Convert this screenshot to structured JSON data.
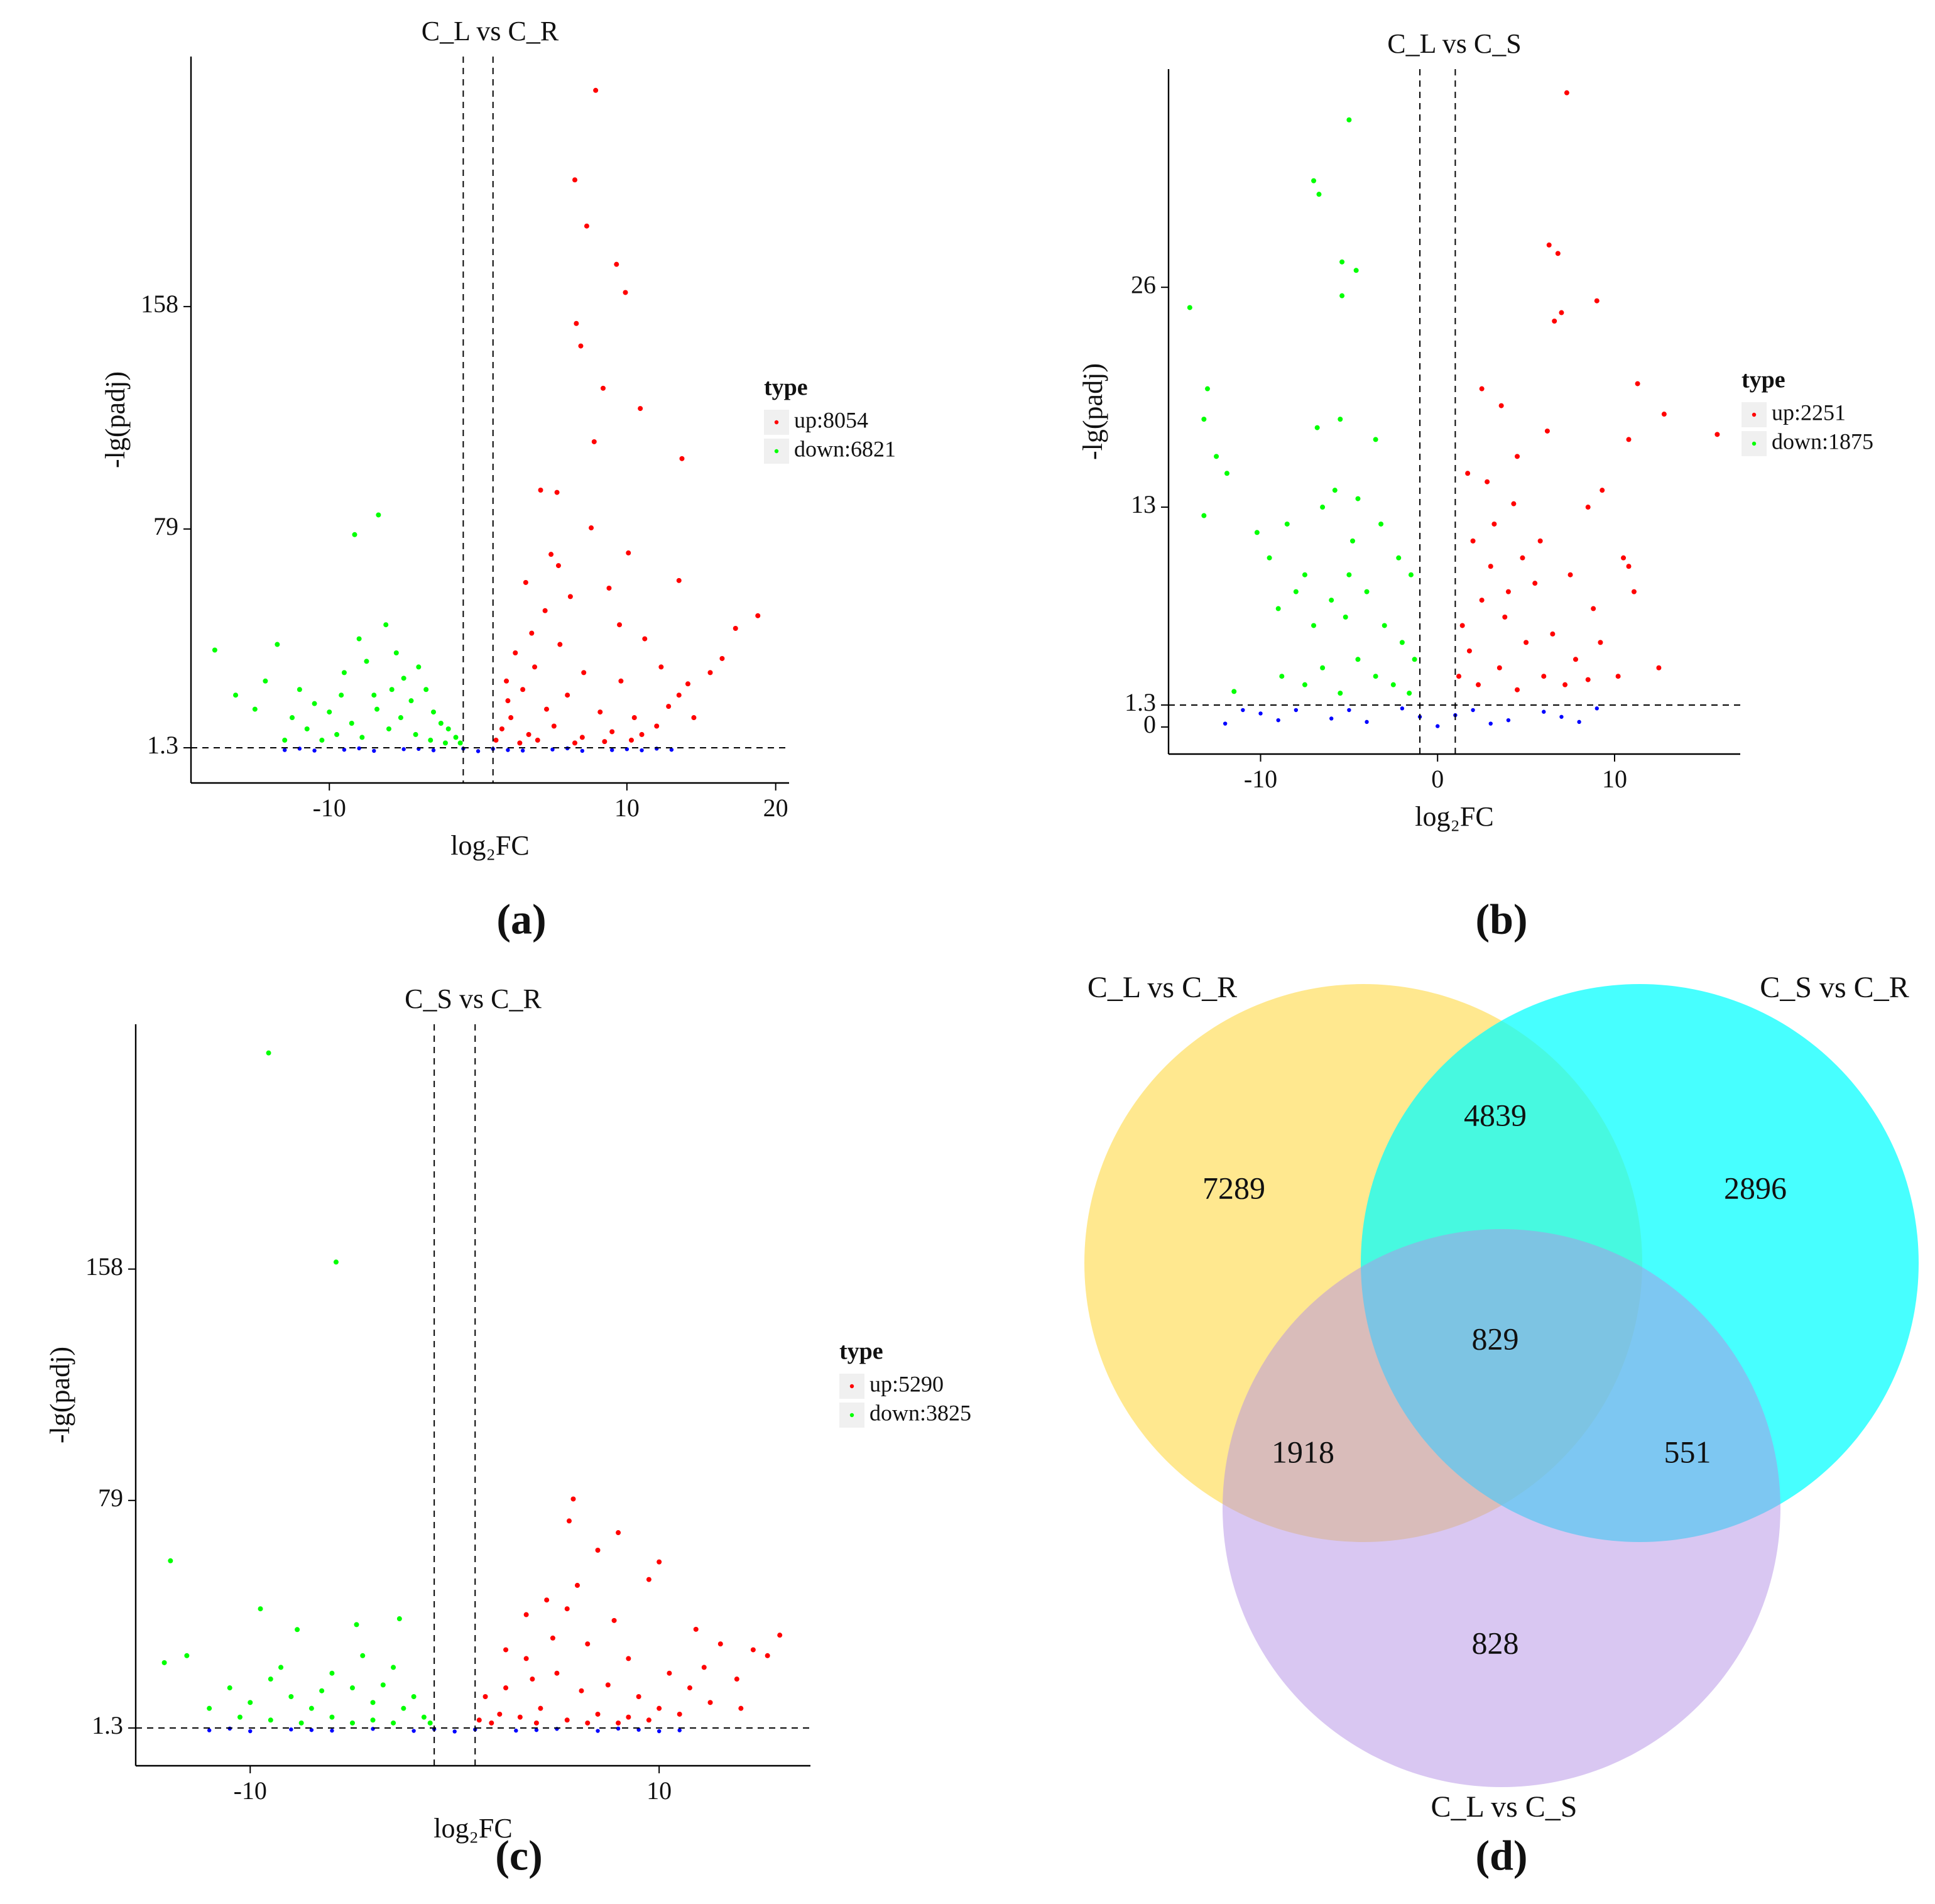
{
  "chart_data": [
    {
      "type": "scatter",
      "panel_label": "(a)",
      "title": "C_L vs C_R",
      "xlabel": "log₂FC",
      "ylabel": "-lg(padj)",
      "legend_title": "type",
      "xlim": [
        -19.3,
        20.9
      ],
      "ylim": [
        -11.2,
        246.8
      ],
      "xticks": [
        -10,
        10,
        20
      ],
      "yticks": [
        1.3,
        79,
        158
      ],
      "thresholds": {
        "x": [
          -1,
          1
        ],
        "y": 1.3
      },
      "series": [
        {
          "color": "#0000ff",
          "x": [
            -13,
            -11,
            -9,
            -7,
            -5,
            -3,
            -1,
            0,
            1,
            3,
            5,
            7,
            9,
            11,
            13,
            -12,
            -8,
            -4,
            2,
            6,
            10,
            12
          ],
          "values": [
            0.5,
            0.3,
            0.6,
            0.2,
            0.8,
            0.4,
            1.0,
            0.1,
            0.9,
            0.3,
            0.7,
            0.2,
            0.5,
            0.4,
            0.6,
            1.0,
            1.1,
            0.9,
            0.5,
            1.1,
            0.8,
            1.0
          ]
        },
        {
          "name": "up:8054",
          "color": "#ff0000",
          "x": [
            7.9,
            6.5,
            7.3,
            9.3,
            9.9,
            6.9,
            6.6,
            8.4,
            10.9,
            13.7,
            7.8,
            5.3,
            4.2,
            7.6,
            5.4,
            10.1,
            13.5,
            18.8,
            17.3,
            3.2,
            4.5,
            6.2,
            8.8,
            9.5,
            11.2,
            2.5,
            3.8,
            5.5,
            7.1,
            9.6,
            12.3,
            14.1,
            15.6,
            16.4,
            2.0,
            3.0,
            4.6,
            6.0,
            8.2,
            10.5,
            12.8,
            13.5,
            1.6,
            2.2,
            3.4,
            5.1,
            7.0,
            9.0,
            11.0,
            1.2,
            2.8,
            4.0,
            6.5,
            8.5,
            10.3,
            12.0,
            14.5,
            1.9,
            3.6,
            4.9
          ],
          "values": [
            234.8,
            203,
            186.6,
            173,
            163,
            144,
            152,
            129,
            121.8,
            104,
            110,
            92,
            92.8,
            79.4,
            66,
            70.5,
            60.7,
            48.2,
            43.7,
            60,
            50,
            55,
            58,
            45,
            40,
            35,
            30,
            38,
            28,
            25,
            30,
            24,
            28,
            33,
            18,
            22,
            15,
            20,
            14,
            12,
            16,
            20,
            8,
            12,
            6,
            9,
            5,
            7,
            6,
            4,
            3,
            4,
            3,
            3.5,
            4,
            9,
            12,
            25,
            42,
            70
          ]
        },
        {
          "name": "down:6821",
          "color": "#00ff00",
          "x": [
            -8.3,
            -6.7,
            -17.7,
            -14.3,
            -13.5,
            -12,
            -11,
            -10,
            -9,
            -8,
            -7.5,
            -7,
            -6.2,
            -5.5,
            -5,
            -4.5,
            -4,
            -3.5,
            -3,
            -2.5,
            -2,
            -1.5,
            -1.2,
            -9.5,
            -11.5,
            -13,
            -15,
            -16.3,
            -12.5,
            -10.5,
            -8.5,
            -7.8,
            -6,
            -5.2,
            -4.2,
            -3.2,
            -2.2,
            -6.8,
            -9.2,
            -5.8
          ],
          "values": [
            77,
            84,
            36,
            25,
            38,
            22,
            17,
            14,
            28,
            40,
            32,
            20,
            45,
            35,
            26,
            18,
            30,
            22,
            14,
            10,
            8,
            5,
            3,
            6,
            8,
            4,
            15,
            20,
            12,
            4,
            10,
            5,
            8,
            12,
            6,
            4,
            3,
            15,
            20,
            22
          ]
        }
      ]
    },
    {
      "type": "scatter",
      "panel_label": "(b)",
      "title": "C_L vs C_S",
      "xlabel": "log₂FC",
      "ylabel": "-lg(padj)",
      "legend_title": "type",
      "xlim": [
        -15.2,
        17.1
      ],
      "ylim": [
        -1.6,
        38.9
      ],
      "xticks": [
        -10,
        0,
        10
      ],
      "yticks": [
        0,
        1.3,
        13,
        26
      ],
      "thresholds": {
        "x": [
          -1,
          1
        ],
        "y": 1.3
      },
      "series": [
        {
          "color": "#0000ff",
          "x": [
            -12,
            -10,
            -8,
            -6,
            -4,
            -2,
            -1,
            0,
            1,
            2,
            4,
            6,
            8,
            9,
            -9,
            -5,
            3,
            7,
            -11
          ],
          "values": [
            0.2,
            0.8,
            1.0,
            0.5,
            0.3,
            1.1,
            0.6,
            0.05,
            0.7,
            1.0,
            0.4,
            0.9,
            0.3,
            1.1,
            0.4,
            1.0,
            0.2,
            0.6,
            1.0
          ]
        },
        {
          "name": "up:2251",
          "color": "#ff0000",
          "x": [
            7.3,
            6.3,
            6.8,
            9.0,
            7.0,
            6.6,
            11.3,
            12.8,
            15.8,
            10.8,
            3.6,
            1.7,
            2.5,
            4.5,
            6.2,
            8.5,
            9.3,
            10.5,
            10.8,
            11.1,
            2.0,
            3.2,
            4.8,
            5.5,
            7.5,
            8.8,
            1.4,
            2.5,
            3.8,
            5.0,
            6.5,
            7.8,
            9.2,
            1.2,
            2.3,
            3.5,
            4.5,
            6.0,
            7.2,
            8.5,
            1.8,
            4.0,
            3.0,
            10.2,
            12.5,
            2.8,
            4.3,
            5.8
          ],
          "values": [
            37.5,
            28.5,
            28,
            25.2,
            24.5,
            24,
            20.3,
            18.5,
            17.3,
            17,
            19,
            15,
            20,
            16,
            17.5,
            13,
            14,
            10,
            9.5,
            8,
            11,
            12,
            10,
            8.5,
            9,
            7,
            6,
            7.5,
            6.5,
            5,
            5.5,
            4,
            5,
            3,
            2.5,
            3.5,
            2.2,
            3,
            2.5,
            2.8,
            4.5,
            8,
            9.5,
            3,
            3.5,
            14.5,
            13.2,
            11
          ]
        },
        {
          "name": "down:1875",
          "color": "#00ff00",
          "x": [
            -5.0,
            -6.7,
            -7.0,
            -4.6,
            -5.4,
            -5.4,
            -14.0,
            -13.0,
            -6.8,
            -5.5,
            -3.5,
            -13.2,
            -12.5,
            -11.9,
            -13.2,
            -10.2,
            -9.5,
            -8.5,
            -7.5,
            -6.5,
            -5.8,
            -4.5,
            -3.2,
            -2.2,
            -1.5,
            -9.0,
            -8.0,
            -7.0,
            -6.0,
            -5.0,
            -4.0,
            -3.0,
            -2.0,
            -1.3,
            -8.8,
            -7.5,
            -6.5,
            -5.5,
            -4.5,
            -3.5,
            -2.5,
            -1.6,
            -11.5,
            -4.8,
            -5.2
          ],
          "values": [
            35.9,
            31.5,
            32.3,
            27,
            27.5,
            25.5,
            24.8,
            20,
            17.7,
            18.2,
            17,
            18.2,
            16,
            15,
            12.5,
            11.5,
            10,
            12,
            9,
            13,
            14,
            13.5,
            12,
            10,
            9,
            7,
            8,
            6,
            7.5,
            9,
            8,
            6,
            5,
            4,
            3,
            2.5,
            3.5,
            2,
            4,
            3,
            2.5,
            2,
            2.1,
            11,
            6.5
          ]
        }
      ]
    },
    {
      "type": "scatter",
      "panel_label": "(c)",
      "title": "C_S vs C_R",
      "xlabel": "log₂FC",
      "ylabel": "-lg(padj)",
      "legend_title": "type",
      "xlim": [
        -15.6,
        17.4
      ],
      "ylim": [
        -11.6,
        241.6
      ],
      "xticks": [
        -10,
        10
      ],
      "yticks": [
        1.3,
        79,
        158
      ],
      "thresholds": {
        "x": [
          -1,
          1
        ],
        "y": 1.3
      },
      "series": [
        {
          "color": "#0000ff",
          "x": [
            -12,
            -10,
            -8,
            -6,
            -4,
            -2,
            -1,
            0,
            1,
            3,
            5,
            7,
            9,
            11,
            -11,
            -7,
            4,
            8,
            10
          ],
          "values": [
            0.5,
            0.2,
            0.8,
            0.4,
            1.0,
            0.3,
            0.9,
            0.1,
            0.8,
            0.4,
            1.0,
            0.3,
            0.7,
            0.5,
            1.1,
            0.6,
            0.6,
            1.1,
            0.2
          ]
        },
        {
          "name": "up:5290",
          "color": "#ff0000",
          "x": [
            5.8,
            5.6,
            8.0,
            7.0,
            10,
            9.5,
            6.0,
            4.5,
            3.5,
            5.5,
            7.8,
            11.8,
            13.0,
            14.6,
            15.9,
            15.3,
            12.2,
            2.5,
            3.5,
            4.8,
            6.5,
            8.5,
            10.5,
            11.5,
            13.8,
            1.5,
            2.5,
            3.8,
            5.0,
            6.2,
            7.5,
            9.0,
            10,
            12.5,
            1.2,
            2.2,
            3.2,
            4.2,
            5.5,
            7.0,
            8.5,
            9.5,
            11,
            14,
            1.8,
            4.0,
            6.5,
            8.0
          ],
          "values": [
            79.5,
            72,
            68,
            62,
            58,
            52,
            50,
            45,
            40,
            42,
            38,
            35,
            30,
            28,
            33,
            26,
            22,
            28,
            25,
            32,
            30,
            25,
            20,
            15,
            18,
            12,
            15,
            18,
            20,
            14,
            16,
            12,
            8,
            10,
            4,
            6,
            5,
            8,
            4,
            6,
            5,
            4,
            6,
            8,
            3,
            3,
            3,
            3
          ]
        },
        {
          "name": "down:3825",
          "color": "#00ff00",
          "x": [
            -9.1,
            -5.8,
            -13.9,
            -9.5,
            -14.2,
            -13.1,
            -7.7,
            -2.7,
            -4.8,
            -11,
            -10,
            -9,
            -8,
            -7,
            -6,
            -5,
            -4,
            -3,
            -2.5,
            -2,
            -1.5,
            -1.2,
            -10.5,
            -12,
            -9,
            -7.5,
            -6,
            -5,
            -4,
            -3,
            -8.5,
            -4.5,
            -6.5,
            -3.5
          ],
          "values": [
            231.8,
            160.4,
            58.4,
            42,
            23.6,
            26,
            34.9,
            38.6,
            36.6,
            15,
            10,
            18,
            12,
            8,
            20,
            15,
            10,
            22,
            8,
            12,
            5,
            3,
            5,
            8,
            4,
            3,
            5,
            3,
            4,
            3,
            22,
            26,
            14,
            16
          ]
        }
      ]
    },
    {
      "type": "venn",
      "panel_label": "(d)",
      "sets": [
        {
          "name": "C_L vs C_R",
          "color": "#ffd633"
        },
        {
          "name": "C_S vs C_R",
          "color": "#00ffff"
        },
        {
          "name": "C_L vs C_S",
          "color": "#b48fe6"
        }
      ],
      "values": [
        7289,
        4839,
        2896,
        829,
        1918,
        551,
        828
      ]
    }
  ]
}
